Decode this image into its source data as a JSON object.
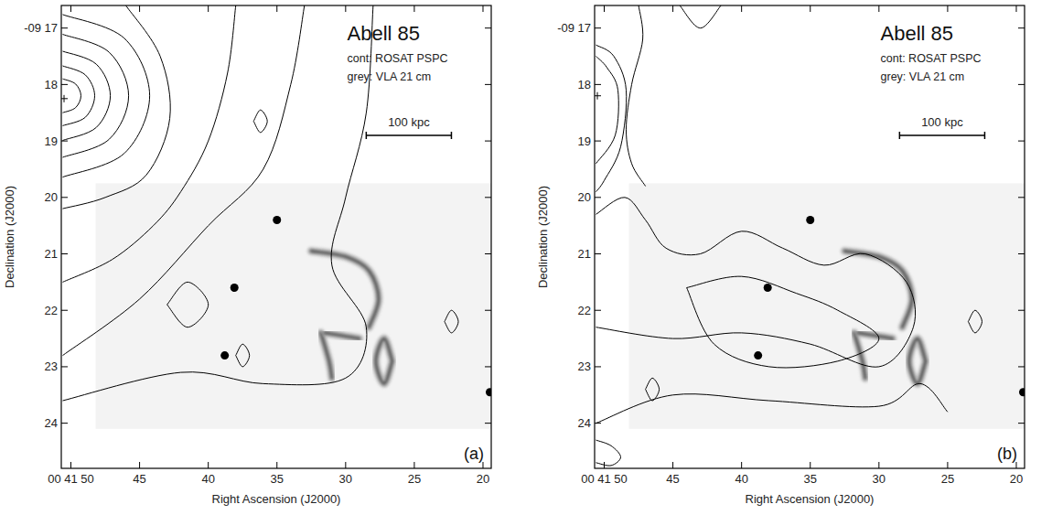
{
  "chart_data": [
    {
      "type": "contour",
      "panel": "(a)",
      "title": "Abell 85",
      "subtitle": [
        "cont: ROSAT PSPC",
        "grey: VLA 21 cm"
      ],
      "xlabel": "Right Ascension (J2000)",
      "ylabel": "Declination (J2000)",
      "xlim": [
        50.7,
        19.4
      ],
      "ylim": [
        16.6,
        24.8
      ],
      "xticks": [
        {
          "value": 50,
          "label": "00 41 50"
        },
        45,
        40,
        35,
        30,
        25,
        20
      ],
      "yticks": [
        {
          "value": 17,
          "label": "-09 17"
        },
        18,
        19,
        20,
        21,
        22,
        23,
        24
      ],
      "scale_bar": {
        "label": "100 kpc",
        "x": [
          28.5,
          22.3
        ],
        "y": 18.9
      },
      "center": {
        "x": 50.5,
        "y": 18.25
      },
      "radio_field": {
        "x": [
          48.2,
          19.4
        ],
        "y": [
          19.75,
          24.1
        ]
      },
      "contours": [
        {
          "x": [
            50.6,
            49.66,
            49.27,
            49.66,
            50.6
          ],
          "y": [
            17.9,
            17.99,
            18.2,
            18.41,
            18.5
          ]
        },
        {
          "x": [
            50.6,
            48.95,
            48.27,
            48.95,
            50.6
          ],
          "y": [
            17.67,
            17.83,
            18.2,
            18.58,
            18.73
          ]
        },
        {
          "x": [
            50.6,
            48.15,
            47.13,
            48.15,
            50.6
          ],
          "y": [
            17.41,
            17.64,
            18.2,
            18.76,
            18.99
          ]
        },
        {
          "x": [
            50.6,
            47.21,
            45.8,
            47.21,
            50.6
          ],
          "y": [
            17.11,
            17.43,
            18.2,
            18.97,
            19.29
          ]
        },
        {
          "x": [
            50.6,
            46.12,
            44.27,
            46.12,
            50.6
          ],
          "y": [
            16.76,
            17.18,
            18.2,
            19.22,
            19.64
          ]
        },
        {
          "x": [
            46.0,
            43.5,
            42.8,
            44.5,
            47.5,
            50.6
          ],
          "y": [
            16.6,
            17.5,
            18.6,
            19.6,
            20.0,
            20.2
          ]
        },
        {
          "x": [
            38.0,
            38.6,
            40.0,
            42.0,
            44.0,
            47.0,
            50.6
          ],
          "y": [
            16.6,
            17.8,
            19.0,
            19.9,
            20.5,
            21.1,
            21.5
          ]
        },
        {
          "x": [
            33.0,
            34.0,
            36.0,
            40.0,
            45.0,
            50.6
          ],
          "y": [
            16.6,
            18.0,
            19.5,
            20.5,
            21.8,
            22.8
          ]
        },
        {
          "x": [
            28.0,
            28.5,
            30.0,
            31.0,
            28.5,
            30.0,
            36.0,
            42.0,
            50.6
          ],
          "y": [
            16.6,
            18.5,
            20.0,
            21.2,
            22.3,
            23.2,
            23.3,
            23.1,
            23.6
          ]
        },
        {
          "x": [
            36.7,
            36.2,
            35.7,
            36.2,
            36.7
          ],
          "y": [
            18.65,
            18.45,
            18.65,
            18.85,
            18.65
          ]
        },
        {
          "x": [
            22.8,
            22.3,
            21.8,
            22.3,
            22.8
          ],
          "y": [
            22.2,
            22.0,
            22.2,
            22.4,
            22.2
          ]
        },
        {
          "x": [
            43.0,
            41.5,
            40.0,
            41.5,
            43.0
          ],
          "y": [
            21.9,
            21.5,
            21.9,
            22.3,
            21.9
          ]
        },
        {
          "x": [
            38.0,
            37.5,
            37.0,
            37.5,
            38.0
          ],
          "y": [
            22.8,
            22.6,
            22.8,
            23.0,
            22.8
          ]
        }
      ],
      "radio": [
        {
          "x": [
            32.5,
            30.0,
            28.3,
            27.6,
            28.3
          ],
          "y": [
            20.95,
            21.05,
            21.3,
            21.8,
            22.3
          ]
        },
        {
          "x": [
            31.8,
            31.2,
            31.0
          ],
          "y": [
            22.4,
            22.9,
            23.2
          ]
        },
        {
          "x": [
            31.5,
            30.2,
            29.0
          ],
          "y": [
            22.4,
            22.45,
            22.5
          ]
        },
        {
          "x": [
            26.6,
            27.2,
            27.8,
            27.2,
            26.6
          ],
          "y": [
            22.9,
            22.5,
            22.9,
            23.3,
            22.9
          ]
        }
      ],
      "sources": {
        "x": [
          35.0,
          38.8,
          19.5,
          38.1
        ],
        "y": [
          20.4,
          22.8,
          23.45,
          21.6
        ]
      }
    },
    {
      "type": "contour",
      "panel": "(b)",
      "title": "Abell 85",
      "subtitle": [
        "cont: ROSAT PSPC",
        "grey: VLA 21 cm"
      ],
      "xlabel": "Right Ascension (J2000)",
      "ylabel": "Declination (J2000)",
      "xlim": [
        50.7,
        19.4
      ],
      "ylim": [
        16.6,
        24.8
      ],
      "xticks": [
        {
          "value": 50,
          "label": "00 41 50"
        },
        45,
        40,
        35,
        30,
        25,
        20
      ],
      "yticks": [
        {
          "value": 17,
          "label": "-09 17"
        },
        18,
        19,
        20,
        21,
        22,
        23,
        24
      ],
      "scale_bar": {
        "label": "100 kpc",
        "x": [
          28.5,
          22.3
        ],
        "y": 18.9
      },
      "center": {
        "x": 50.5,
        "y": 18.2
      },
      "radio_field": {
        "x": [
          48.2,
          19.4
        ],
        "y": [
          19.75,
          24.1
        ]
      },
      "contours": [
        {
          "x": [
            50.6,
            49.8,
            49.0,
            49.2,
            50.6
          ],
          "y": [
            17.5,
            17.7,
            18.1,
            18.9,
            19.4
          ]
        },
        {
          "x": [
            50.6,
            49.3,
            48.4,
            48.8,
            50.0,
            50.6
          ],
          "y": [
            17.3,
            17.5,
            18.1,
            19.1,
            19.7,
            19.9
          ]
        },
        {
          "x": [
            47.5,
            47.2,
            48.0,
            48.4,
            48.0,
            47.0
          ],
          "y": [
            16.6,
            17.2,
            18.0,
            18.8,
            19.4,
            19.8
          ]
        },
        {
          "x": [
            44.5,
            43.0,
            41.5
          ],
          "y": [
            16.6,
            17.0,
            16.6
          ]
        },
        {
          "x": [
            50.6,
            48.5,
            47.0,
            45.5,
            43.0,
            40.0,
            37.0,
            34.0,
            31.0,
            28.0,
            27.5,
            30.0,
            35.0,
            40.0,
            45.0,
            50.6
          ],
          "y": [
            20.3,
            20.0,
            20.4,
            20.9,
            21.0,
            20.6,
            20.9,
            21.2,
            21.0,
            21.5,
            22.3,
            23.0,
            22.6,
            22.4,
            22.5,
            22.3
          ]
        },
        {
          "x": [
            44.0,
            40.0,
            36.0,
            33.0,
            30.0,
            33.0,
            38.0,
            42.0,
            44.0
          ],
          "y": [
            21.6,
            21.4,
            21.7,
            22.0,
            22.5,
            22.9,
            23.0,
            22.6,
            21.6
          ]
        },
        {
          "x": [
            50.6,
            45.0,
            38.0,
            30.0,
            27.0,
            25.0
          ],
          "y": [
            24.0,
            23.5,
            23.6,
            23.7,
            23.3,
            23.8
          ]
        },
        {
          "x": [
            23.5,
            23.0,
            22.5,
            23.0,
            23.5
          ],
          "y": [
            22.2,
            22.0,
            22.2,
            22.4,
            22.2
          ]
        },
        {
          "x": [
            47.0,
            46.5,
            46.0,
            46.5,
            47.0
          ],
          "y": [
            23.4,
            23.2,
            23.4,
            23.6,
            23.4
          ]
        },
        {
          "x": [
            50.6,
            49.5,
            48.8,
            49.5,
            50.6
          ],
          "y": [
            24.3,
            24.4,
            24.6,
            24.75,
            24.7
          ]
        }
      ],
      "radio": [
        {
          "x": [
            32.5,
            30.0,
            28.3,
            27.6,
            28.3
          ],
          "y": [
            20.95,
            21.05,
            21.3,
            21.8,
            22.3
          ]
        },
        {
          "x": [
            31.8,
            31.2,
            31.0
          ],
          "y": [
            22.4,
            22.9,
            23.2
          ]
        },
        {
          "x": [
            31.5,
            30.2,
            29.0
          ],
          "y": [
            22.4,
            22.45,
            22.5
          ]
        },
        {
          "x": [
            26.6,
            27.2,
            27.8,
            27.2,
            26.6
          ],
          "y": [
            22.9,
            22.5,
            22.9,
            23.3,
            22.9
          ]
        }
      ],
      "sources": {
        "x": [
          35.0,
          38.8,
          19.5,
          38.1
        ],
        "y": [
          20.4,
          22.8,
          23.45,
          21.6
        ]
      }
    }
  ]
}
